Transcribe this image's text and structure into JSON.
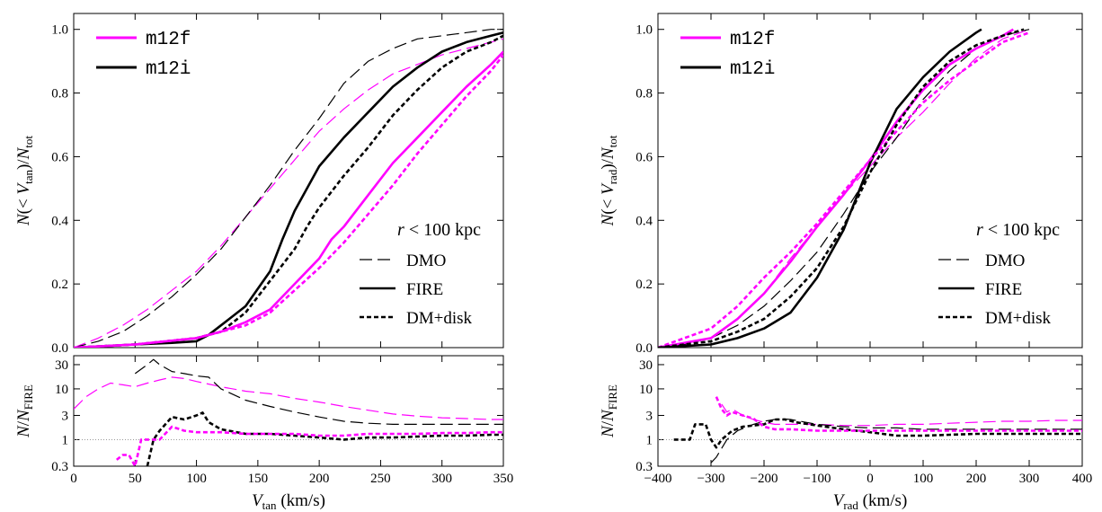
{
  "figure": {
    "legend_line": [
      "m12f",
      "m12i"
    ],
    "legend_style": [
      "DMO",
      "FIRE",
      "DM+disk"
    ],
    "annotation": "r < 100 kpc"
  },
  "chart_data": [
    {
      "id": "left",
      "type": "line",
      "xlabel": "V_tan (km/s)",
      "top": {
        "ylabel": "N(< V_tan)/N_tot",
        "xlim": [
          0,
          350
        ],
        "ylim": [
          0,
          1.05
        ],
        "yticks": [
          0.0,
          0.2,
          0.4,
          0.6,
          0.8,
          1.0
        ],
        "series": [
          {
            "name": "m12f",
            "style": "DMO",
            "color": "#ff00ff",
            "x": [
              0,
              20,
              40,
              60,
              80,
              100,
              120,
              140,
              160,
              180,
              200,
              220,
              240,
              260,
              280,
              300,
              320,
              340,
              350
            ],
            "y": [
              0,
              0.03,
              0.07,
              0.12,
              0.18,
              0.24,
              0.32,
              0.41,
              0.5,
              0.59,
              0.68,
              0.75,
              0.81,
              0.86,
              0.89,
              0.92,
              0.94,
              0.96,
              0.97
            ]
          },
          {
            "name": "m12i",
            "style": "DMO",
            "color": "#000000",
            "x": [
              0,
              20,
              40,
              60,
              80,
              100,
              120,
              140,
              160,
              180,
              200,
              220,
              240,
              260,
              280,
              300,
              320,
              340,
              350
            ],
            "y": [
              0,
              0.02,
              0.05,
              0.1,
              0.16,
              0.23,
              0.31,
              0.41,
              0.51,
              0.62,
              0.72,
              0.83,
              0.9,
              0.94,
              0.97,
              0.98,
              0.99,
              1.0,
              1.0
            ]
          },
          {
            "name": "m12i",
            "style": "FIRE",
            "color": "#000000",
            "x": [
              0,
              50,
              80,
              100,
              110,
              120,
              140,
              160,
              170,
              180,
              200,
              220,
              240,
              260,
              280,
              300,
              320,
              340,
              350
            ],
            "y": [
              0,
              0.01,
              0.015,
              0.02,
              0.04,
              0.07,
              0.13,
              0.24,
              0.34,
              0.43,
              0.57,
              0.66,
              0.74,
              0.82,
              0.88,
              0.93,
              0.96,
              0.98,
              0.99
            ]
          },
          {
            "name": "m12i",
            "style": "DM+disk",
            "color": "#000000",
            "x": [
              0,
              50,
              100,
              120,
              140,
              160,
              180,
              190,
              200,
              220,
              240,
              260,
              280,
              300,
              320,
              340,
              350
            ],
            "y": [
              0,
              0.01,
              0.03,
              0.05,
              0.11,
              0.21,
              0.31,
              0.38,
              0.44,
              0.54,
              0.63,
              0.73,
              0.81,
              0.88,
              0.93,
              0.96,
              0.98
            ]
          },
          {
            "name": "m12f",
            "style": "FIRE",
            "color": "#ff00ff",
            "x": [
              0,
              50,
              100,
              120,
              140,
              160,
              180,
              200,
              210,
              220,
              240,
              260,
              280,
              300,
              320,
              340,
              350
            ],
            "y": [
              0,
              0.01,
              0.03,
              0.05,
              0.08,
              0.12,
              0.2,
              0.28,
              0.34,
              0.38,
              0.48,
              0.58,
              0.66,
              0.74,
              0.82,
              0.89,
              0.93
            ]
          },
          {
            "name": "m12f",
            "style": "DM+disk",
            "color": "#ff00ff",
            "x": [
              0,
              50,
              100,
              120,
              140,
              160,
              180,
              200,
              220,
              240,
              260,
              280,
              300,
              320,
              340,
              350
            ],
            "y": [
              0,
              0.01,
              0.03,
              0.05,
              0.07,
              0.11,
              0.18,
              0.25,
              0.33,
              0.42,
              0.51,
              0.61,
              0.7,
              0.79,
              0.87,
              0.92
            ]
          }
        ]
      },
      "bottom": {
        "ylabel": "N/N_FIRE",
        "yscale": "log",
        "ylim": [
          0.3,
          45
        ],
        "yticks": [
          0.3,
          1,
          3,
          10,
          30
        ],
        "xticks": [
          0,
          50,
          100,
          150,
          200,
          250,
          300,
          350
        ],
        "reference_line": 1,
        "series": [
          {
            "name": "m12f",
            "style": "DMO",
            "color": "#ff00ff",
            "x": [
              0,
              10,
              20,
              30,
              40,
              50,
              60,
              70,
              80,
              90,
              100,
              120,
              140,
              160,
              180,
              200,
              220,
              240,
              260,
              280,
              300,
              320,
              340,
              350
            ],
            "y": [
              4,
              7,
              10,
              13,
              12,
              11,
              13,
              15,
              17,
              16,
              14,
              11,
              9,
              8,
              6.5,
              5.5,
              4.5,
              3.8,
              3.2,
              2.9,
              2.7,
              2.6,
              2.5,
              2.5
            ]
          },
          {
            "name": "m12i",
            "style": "DMO",
            "color": "#000000",
            "x": [
              50,
              60,
              65,
              70,
              80,
              90,
              100,
              110,
              120,
              140,
              160,
              180,
              200,
              220,
              240,
              260,
              280,
              300,
              320,
              340,
              350
            ],
            "y": [
              20,
              30,
              38,
              30,
              22,
              20,
              18,
              17,
              10,
              6,
              4.5,
              3.5,
              2.8,
              2.3,
              2.1,
              2.0,
              2.0,
              2.0,
              2.0,
              2.0,
              2.0
            ]
          },
          {
            "name": "m12i",
            "style": "DM+disk",
            "color": "#000000",
            "x": [
              60,
              65,
              70,
              80,
              90,
              100,
              105,
              110,
              120,
              140,
              160,
              180,
              200,
              220,
              240,
              260,
              280,
              300,
              320,
              340,
              350
            ],
            "y": [
              0.3,
              1,
              1.5,
              2.8,
              2.5,
              3,
              3.4,
              2.2,
              1.6,
              1.3,
              1.3,
              1.2,
              1.1,
              1.0,
              1.1,
              1.1,
              1.15,
              1.2,
              1.2,
              1.25,
              1.25
            ]
          },
          {
            "name": "m12f",
            "style": "DM+disk",
            "color": "#ff00ff",
            "x": [
              35,
              40,
              45,
              50,
              55,
              60,
              70,
              80,
              90,
              100,
              120,
              140,
              160,
              180,
              200,
              220,
              240,
              260,
              280,
              300,
              320,
              340,
              350
            ],
            "y": [
              0.4,
              0.5,
              0.5,
              0.3,
              1,
              1,
              1,
              1.8,
              1.5,
              1.4,
              1.4,
              1.3,
              1.3,
              1.3,
              1.2,
              1.2,
              1.3,
              1.3,
              1.3,
              1.35,
              1.35,
              1.4,
              1.4
            ]
          }
        ]
      }
    },
    {
      "id": "right",
      "type": "line",
      "xlabel": "V_rad (km/s)",
      "top": {
        "ylabel": "N(< V_rad)/N_tot",
        "xlim": [
          -400,
          400
        ],
        "ylim": [
          0,
          1.05
        ],
        "yticks": [
          0.0,
          0.2,
          0.4,
          0.6,
          0.8,
          1.0
        ],
        "series": [
          {
            "name": "m12f",
            "style": "DMO",
            "color": "#ff00ff",
            "x": [
              -400,
              -350,
              -300,
              -250,
              -200,
              -150,
              -100,
              -50,
              0,
              50,
              100,
              150,
              200,
              250,
              300
            ],
            "y": [
              0,
              0.01,
              0.03,
              0.09,
              0.17,
              0.28,
              0.38,
              0.48,
              0.57,
              0.66,
              0.74,
              0.83,
              0.91,
              0.97,
              1.0
            ]
          },
          {
            "name": "m12i",
            "style": "DMO",
            "color": "#000000",
            "x": [
              -400,
              -350,
              -300,
              -250,
              -200,
              -150,
              -100,
              -50,
              0,
              50,
              100,
              150,
              200,
              250,
              300
            ],
            "y": [
              0,
              0.01,
              0.03,
              0.07,
              0.13,
              0.21,
              0.3,
              0.42,
              0.55,
              0.66,
              0.78,
              0.87,
              0.94,
              0.98,
              1.0
            ]
          },
          {
            "name": "m12f",
            "style": "FIRE",
            "color": "#ff00ff",
            "x": [
              -400,
              -300,
              -250,
              -200,
              -150,
              -100,
              -50,
              0,
              50,
              100,
              150,
              200,
              250,
              270
            ],
            "y": [
              0,
              0.03,
              0.09,
              0.17,
              0.27,
              0.38,
              0.48,
              0.59,
              0.71,
              0.81,
              0.89,
              0.94,
              0.98,
              1.0
            ]
          },
          {
            "name": "m12i",
            "style": "FIRE",
            "color": "#000000",
            "x": [
              -400,
              -300,
              -250,
              -200,
              -150,
              -100,
              -50,
              0,
              50,
              100,
              150,
              200,
              210
            ],
            "y": [
              0,
              0.01,
              0.03,
              0.06,
              0.11,
              0.22,
              0.37,
              0.58,
              0.75,
              0.85,
              0.93,
              0.99,
              1.0
            ]
          },
          {
            "name": "m12f",
            "style": "DM+disk",
            "color": "#ff00ff",
            "x": [
              -400,
              -300,
              -250,
              -200,
              -150,
              -100,
              -50,
              0,
              50,
              100,
              150,
              200,
              250,
              300
            ],
            "y": [
              0,
              0.06,
              0.13,
              0.22,
              0.3,
              0.39,
              0.49,
              0.59,
              0.68,
              0.77,
              0.84,
              0.9,
              0.96,
              0.99
            ]
          },
          {
            "name": "m12i",
            "style": "DM+disk",
            "color": "#000000",
            "x": [
              -400,
              -300,
              -250,
              -200,
              -150,
              -100,
              -50,
              0,
              50,
              100,
              150,
              200,
              250,
              290
            ],
            "y": [
              0,
              0.02,
              0.05,
              0.09,
              0.16,
              0.25,
              0.38,
              0.55,
              0.7,
              0.82,
              0.9,
              0.95,
              0.98,
              1.0
            ]
          }
        ]
      },
      "bottom": {
        "ylabel": "N/N_FIRE",
        "yscale": "log",
        "ylim": [
          0.3,
          45
        ],
        "yticks": [
          0.3,
          1,
          3,
          10,
          30
        ],
        "xticks": [
          -400,
          -300,
          -200,
          -100,
          0,
          100,
          200,
          300,
          400
        ],
        "reference_line": 1,
        "series": [
          {
            "name": "m12f",
            "style": "DMO",
            "color": "#ff00ff",
            "x": [
              -280,
              -270,
              -260,
              -240,
              -220,
              -200,
              -180,
              -150,
              -100,
              -50,
              0,
              50,
              100,
              150,
              200,
              250,
              300,
              350,
              400
            ],
            "y": [
              5,
              3.5,
              4,
              3,
              2.5,
              2.2,
              2.0,
              2.0,
              2.0,
              1.9,
              1.9,
              2.0,
              2.0,
              2.1,
              2.2,
              2.3,
              2.3,
              2.4,
              2.4
            ]
          },
          {
            "name": "m12i",
            "style": "DMO",
            "color": "#000000",
            "x": [
              -300,
              -290,
              -270,
              -250,
              -220,
              -200,
              -170,
              -150,
              -100,
              -50,
              0,
              50,
              100,
              150,
              200,
              250,
              300,
              350,
              400
            ],
            "y": [
              0.35,
              0.45,
              1,
              1.5,
              2,
              2.3,
              2.6,
              2.5,
              2.0,
              1.8,
              1.7,
              1.7,
              1.6,
              1.6,
              1.6,
              1.6,
              1.6,
              1.6,
              1.6
            ]
          },
          {
            "name": "m12i",
            "style": "DM+disk",
            "color": "#000000",
            "x": [
              -370,
              -340,
              -330,
              -320,
              -310,
              -300,
              -290,
              -280,
              -260,
              -240,
              -200,
              -180,
              -160,
              -140,
              -100,
              -50,
              0,
              50,
              100,
              150,
              200,
              250,
              300,
              350,
              400
            ],
            "y": [
              1,
              1,
              2,
              2,
              2,
              1,
              0.7,
              1,
              1.5,
              1.8,
              2,
              2.5,
              2.5,
              2.2,
              1.9,
              1.6,
              1.4,
              1.2,
              1.2,
              1.25,
              1.3,
              1.3,
              1.3,
              1.3,
              1.3
            ]
          },
          {
            "name": "m12f",
            "style": "DM+disk",
            "color": "#ff00ff",
            "x": [
              -290,
              -280,
              -270,
              -260,
              -240,
              -220,
              -200,
              -180,
              -150,
              -100,
              -50,
              0,
              50,
              100,
              150,
              200,
              250,
              300,
              350,
              400
            ],
            "y": [
              7,
              4,
              3,
              3.5,
              3,
              2.6,
              1.8,
              1.6,
              1.6,
              1.5,
              1.5,
              1.5,
              1.5,
              1.5,
              1.5,
              1.5,
              1.5,
              1.5,
              1.5,
              1.5
            ]
          }
        ]
      }
    }
  ]
}
